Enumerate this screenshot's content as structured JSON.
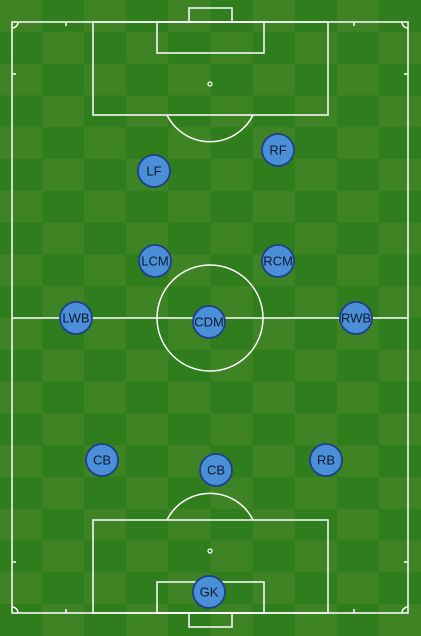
{
  "colors": {
    "grass_dark": "#2f7d1d",
    "grass_light": "#4a8a2a",
    "lines": "#ffffff",
    "player_fill": "#4a8fd8",
    "player_stroke": "#1f3f8a"
  },
  "players": [
    {
      "label": "RF"
    },
    {
      "label": "LF"
    },
    {
      "label": "LCM"
    },
    {
      "label": "RCM"
    },
    {
      "label": "LWB"
    },
    {
      "label": "CDM"
    },
    {
      "label": "RWB"
    },
    {
      "label": "CB"
    },
    {
      "label": "CB"
    },
    {
      "label": "RB"
    },
    {
      "label": "GK"
    }
  ]
}
